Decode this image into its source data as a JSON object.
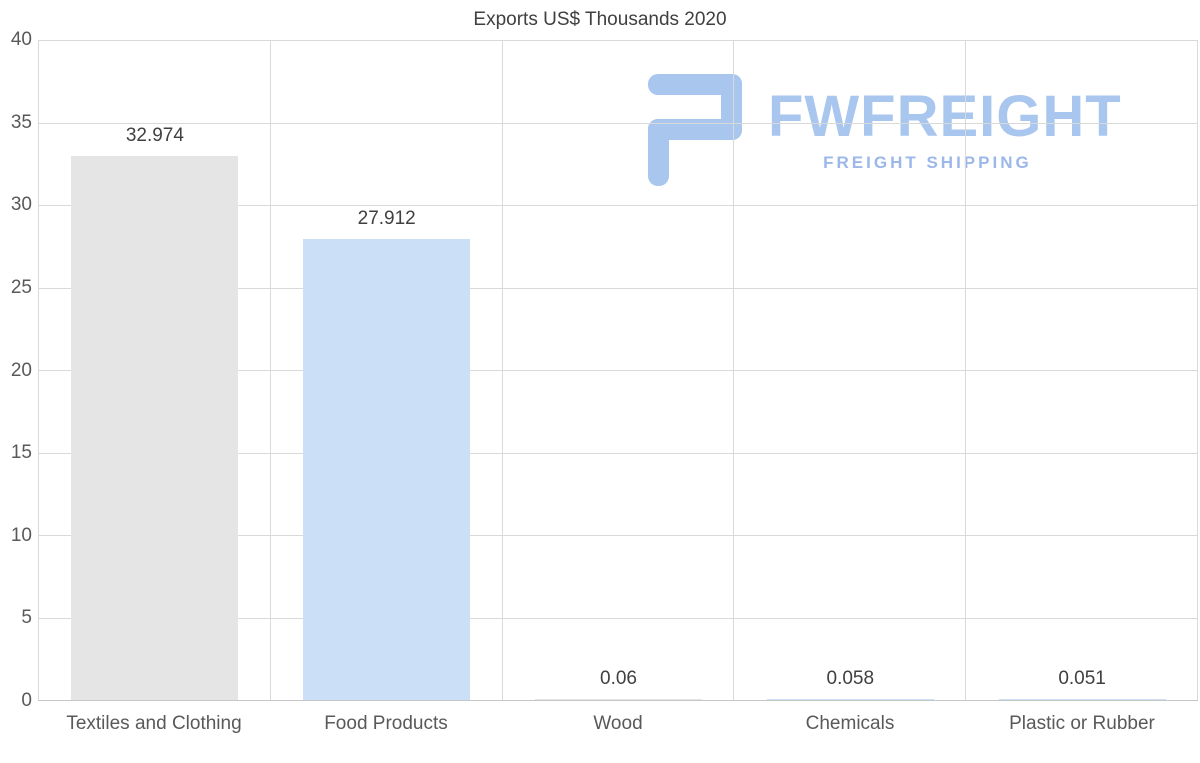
{
  "chart_data": {
    "type": "bar",
    "title": "Exports US$ Thousands 2020",
    "categories": [
      "Textiles and Clothing",
      "Food Products",
      "Wood",
      "Chemicals",
      "Plastic or Rubber"
    ],
    "values": [
      32.974,
      27.912,
      0.06,
      0.058,
      0.051
    ],
    "value_labels": [
      "32.974",
      "27.912",
      "0.06",
      "0.058",
      "0.051"
    ],
    "bar_colors": [
      "#e5e5e5",
      "#cbdff7",
      "#e5e5e5",
      "#cbdff7",
      "#cbdff7"
    ],
    "ylim": [
      0,
      40
    ],
    "yticks": [
      0,
      5,
      10,
      15,
      20,
      25,
      30,
      35,
      40
    ],
    "grid": true,
    "legend": "none",
    "xlabel": "",
    "ylabel": ""
  },
  "logo": {
    "name": "FWFREIGHT",
    "tagline": "FREIGHT SHIPPING",
    "color": "#a9c6ef"
  },
  "colors": {
    "grid": "#d9d9d9",
    "axis_text": "#595959",
    "title_text": "#404040"
  }
}
